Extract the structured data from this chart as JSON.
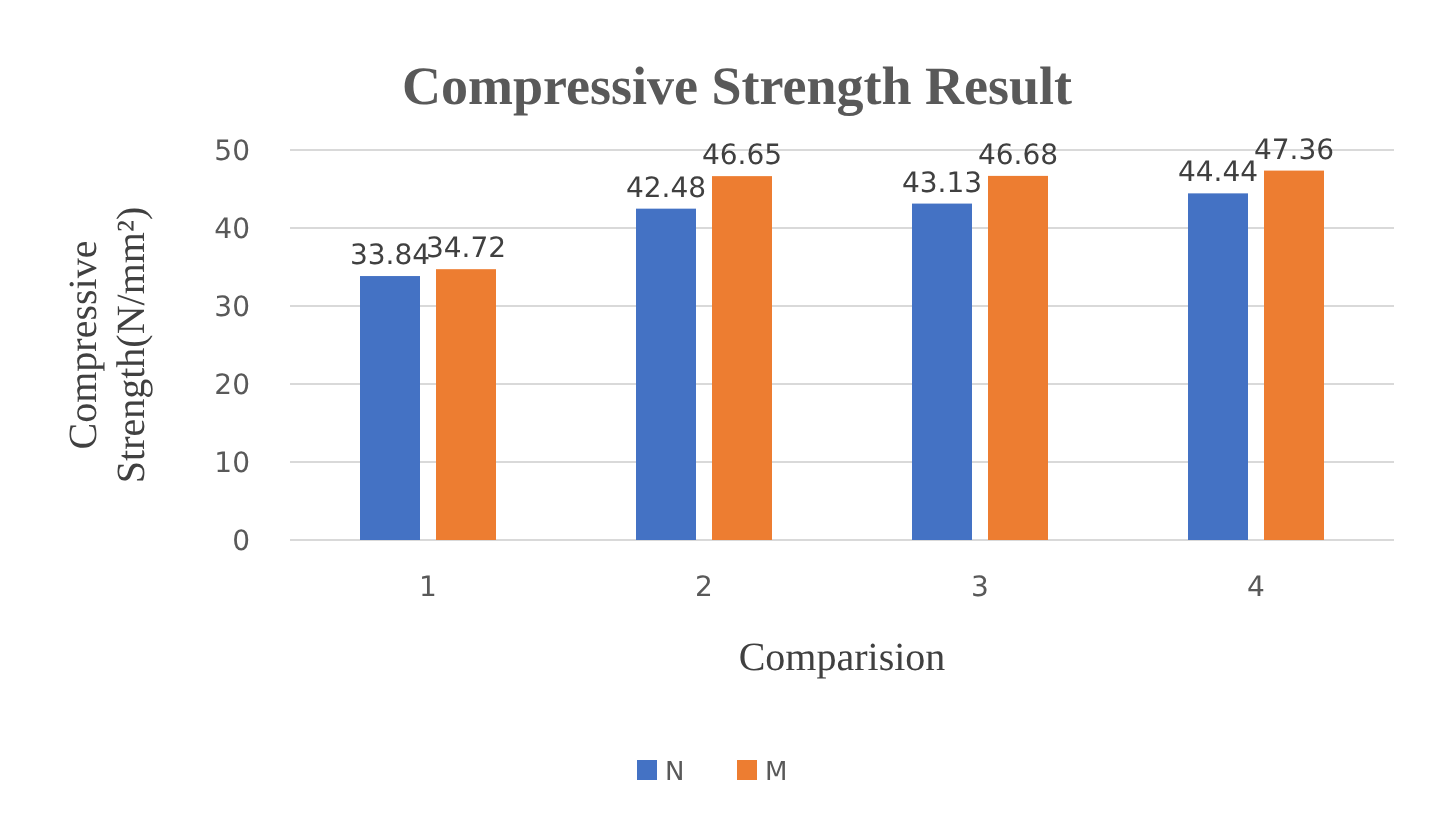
{
  "chart_data": {
    "type": "bar",
    "title": "Compressive Strength Result",
    "xlabel": "Comparision",
    "ylabel": "Compressive Strength(N/mm²)",
    "categories": [
      "1",
      "2",
      "3",
      "4"
    ],
    "series": [
      {
        "name": "N",
        "color": "#4472c4",
        "values": [
          33.84,
          42.48,
          43.13,
          44.44
        ]
      },
      {
        "name": "M",
        "color": "#ed7d31",
        "values": [
          34.72,
          46.65,
          46.68,
          47.36
        ]
      }
    ],
    "ylim": [
      0,
      50
    ],
    "yticks": [
      0,
      10,
      20,
      30,
      40,
      50
    ],
    "grid": "y",
    "legend": "bottom",
    "data_labels": true
  }
}
